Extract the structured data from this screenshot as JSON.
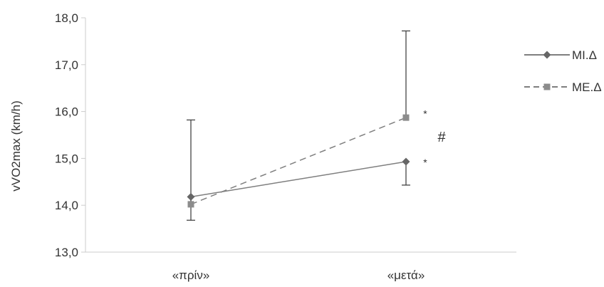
{
  "chart_data": {
    "type": "line",
    "categories": [
      "«πρίν»",
      "«μετά»"
    ],
    "ylabel": "vVO2max (km/h)",
    "ylim": [
      13.0,
      18.0
    ],
    "yticks": [
      "13,0",
      "14,0",
      "15,0",
      "16,0",
      "17,0",
      "18,0"
    ],
    "series": [
      {
        "name": "ΜΙ.Δ",
        "marker": "diamond",
        "line_style": "solid",
        "values": [
          14.18,
          14.93
        ],
        "error_low": [
          13.68,
          14.43
        ],
        "error_high": [
          14.18,
          14.93
        ]
      },
      {
        "name": "ΜΕ.Δ",
        "marker": "square",
        "line_style": "dashed",
        "values": [
          14.02,
          15.87
        ],
        "error_low": [
          14.02,
          15.87
        ],
        "error_high": [
          15.82,
          17.72
        ]
      }
    ],
    "annotations": [
      {
        "text": "*",
        "x": "«μετά»",
        "y": 15.97
      },
      {
        "text": "#",
        "x": "«μετά»",
        "y": 15.45
      },
      {
        "text": "*",
        "x": "«μετά»",
        "y": 14.93
      }
    ],
    "legend_position": "right",
    "grid": false,
    "colors": {
      "line": "#7f7f7f",
      "marker": "#666666",
      "axis": "#cccccc",
      "text": "#333333"
    }
  }
}
